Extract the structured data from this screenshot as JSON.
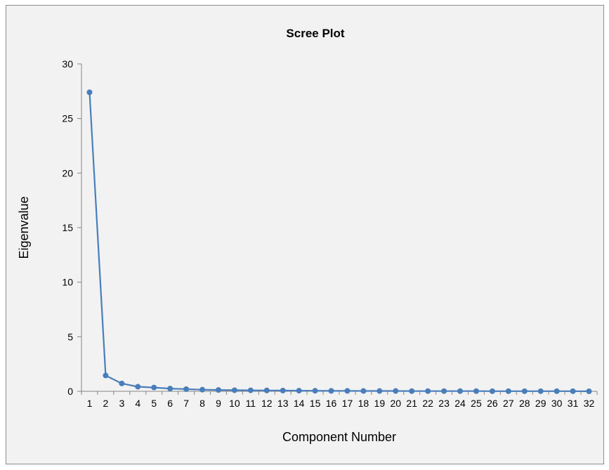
{
  "chart_data": {
    "type": "line",
    "title": "Scree Plot",
    "xlabel": "Component Number",
    "ylabel": "Eigenvalue",
    "categories": [
      "1",
      "2",
      "3",
      "4",
      "5",
      "6",
      "7",
      "8",
      "9",
      "10",
      "11",
      "12",
      "13",
      "14",
      "15",
      "16",
      "17",
      "18",
      "19",
      "20",
      "21",
      "22",
      "23",
      "24",
      "25",
      "26",
      "27",
      "28",
      "29",
      "30",
      "31",
      "32"
    ],
    "series": [
      {
        "values": [
          27.4,
          1.45,
          0.72,
          0.42,
          0.35,
          0.25,
          0.2,
          0.15,
          0.12,
          0.1,
          0.09,
          0.08,
          0.07,
          0.06,
          0.05,
          0.04,
          0.04,
          0.03,
          0.03,
          0.03,
          0.02,
          0.02,
          0.02,
          0.02,
          0.02,
          0.01,
          0.01,
          0.01,
          0.01,
          0.01,
          0.01,
          0.0
        ],
        "color": "#4a7ebb"
      }
    ],
    "ylim": [
      0,
      30
    ],
    "yticks": [
      0,
      5,
      10,
      15,
      20,
      25,
      30
    ],
    "grid": false,
    "legend": "none",
    "background": "#f2f2f2",
    "axis_color": "#868686"
  }
}
